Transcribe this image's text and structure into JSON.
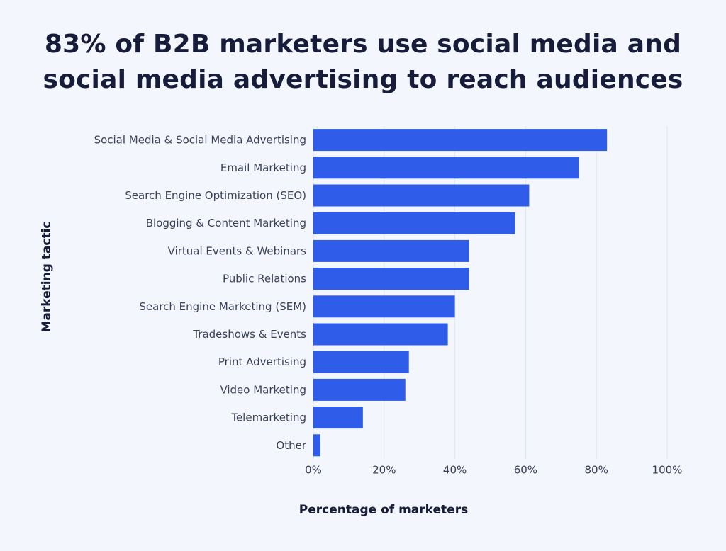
{
  "chart_data": {
    "type": "bar",
    "orientation": "horizontal",
    "title_lines": [
      "83% of B2B marketers use social media and",
      "social media advertising to reach audiences"
    ],
    "xlabel": "Percentage of marketers",
    "ylabel": "Marketing tactic",
    "categories": [
      "Social Media & Social Media Advertising",
      "Email Marketing",
      "Search Engine Optimization (SEO)",
      "Blogging & Content Marketing",
      "Virtual Events & Webinars",
      "Public Relations",
      "Search Engine Marketing (SEM)",
      "Tradeshows & Events",
      "Print Advertising",
      "Video Marketing",
      "Telemarketing",
      "Other"
    ],
    "values": [
      83,
      75,
      61,
      57,
      44,
      44,
      40,
      38,
      27,
      26,
      14,
      2
    ],
    "xlim": [
      0,
      100
    ],
    "xticks": [
      0,
      20,
      40,
      60,
      80,
      100
    ],
    "xtick_labels": [
      "0%",
      "20%",
      "40%",
      "60%",
      "80%",
      "100%"
    ],
    "grid": true,
    "colors": {
      "bar": "#2f5ce8",
      "grid": "#dfe5ee",
      "background": "#f3f7fd"
    }
  }
}
